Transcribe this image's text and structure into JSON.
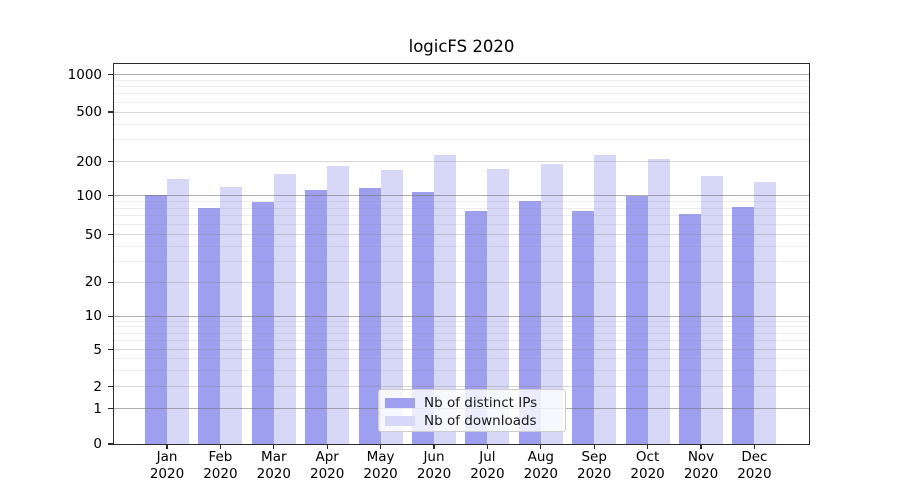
{
  "chart_data": {
    "type": "bar",
    "title": "logicFS 2020",
    "categories": [
      "Jan 2020",
      "Feb 2020",
      "Mar 2020",
      "Apr 2020",
      "May 2020",
      "Jun 2020",
      "Jul 2020",
      "Aug 2020",
      "Sep 2020",
      "Oct 2020",
      "Nov 2020",
      "Dec 2020"
    ],
    "series": [
      {
        "name": "Nb of distinct IPs",
        "color": "#9f9ff0",
        "values": [
          102,
          80,
          89,
          113,
          116,
          108,
          76,
          91,
          76,
          99,
          72,
          82
        ]
      },
      {
        "name": "Nb of downloads",
        "color": "#d7d7f8",
        "values": [
          141,
          118,
          154,
          184,
          169,
          224,
          173,
          191,
          224,
          211,
          148,
          132
        ]
      }
    ],
    "xlabel": "",
    "ylabel": "",
    "yscale": "symlog",
    "yticks": [
      0,
      1,
      2,
      5,
      10,
      20,
      50,
      100,
      200,
      500,
      1000
    ],
    "ylim": [
      0,
      1250
    ],
    "grid": true,
    "legend_position": "lower center"
  }
}
